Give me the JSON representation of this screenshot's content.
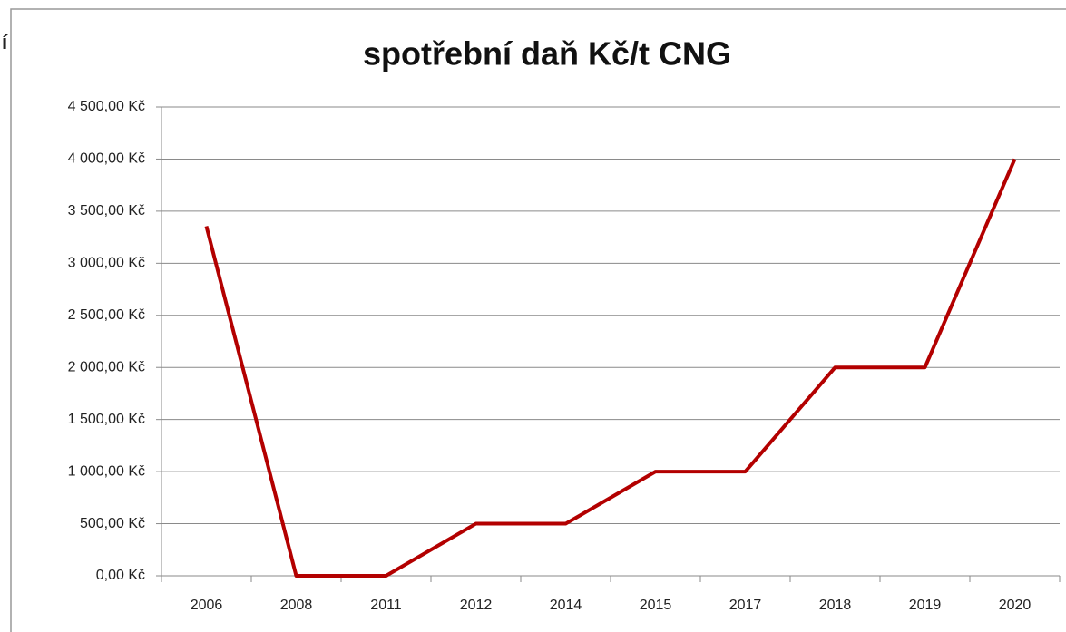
{
  "side_text": "í",
  "chart_data": {
    "type": "line",
    "title": "spotřební daň Kč/t CNG",
    "categories": [
      "2006",
      "2008",
      "2011",
      "2012",
      "2014",
      "2015",
      "2017",
      "2018",
      "2019",
      "2020"
    ],
    "series": [
      {
        "name": null,
        "color": "#b30000",
        "values": [
          3355,
          0,
          0,
          500,
          500,
          1000,
          1000,
          2000,
          2000,
          4000
        ]
      }
    ],
    "ylim": [
      0,
      4500
    ],
    "yticks": [
      {
        "value": 0,
        "label": "0,00 Kč"
      },
      {
        "value": 500,
        "label": "500,00 Kč"
      },
      {
        "value": 1000,
        "label": "1 000,00 Kč"
      },
      {
        "value": 1500,
        "label": "1 500,00 Kč"
      },
      {
        "value": 2000,
        "label": "2 000,00 Kč"
      },
      {
        "value": 2500,
        "label": "2 500,00 Kč"
      },
      {
        "value": 3000,
        "label": "3 000,00 Kč"
      },
      {
        "value": 3500,
        "label": "3 500,00 Kč"
      },
      {
        "value": 4000,
        "label": "4 000,00 Kč"
      },
      {
        "value": 4500,
        "label": "4 500,00 Kč"
      }
    ],
    "grid": true
  }
}
